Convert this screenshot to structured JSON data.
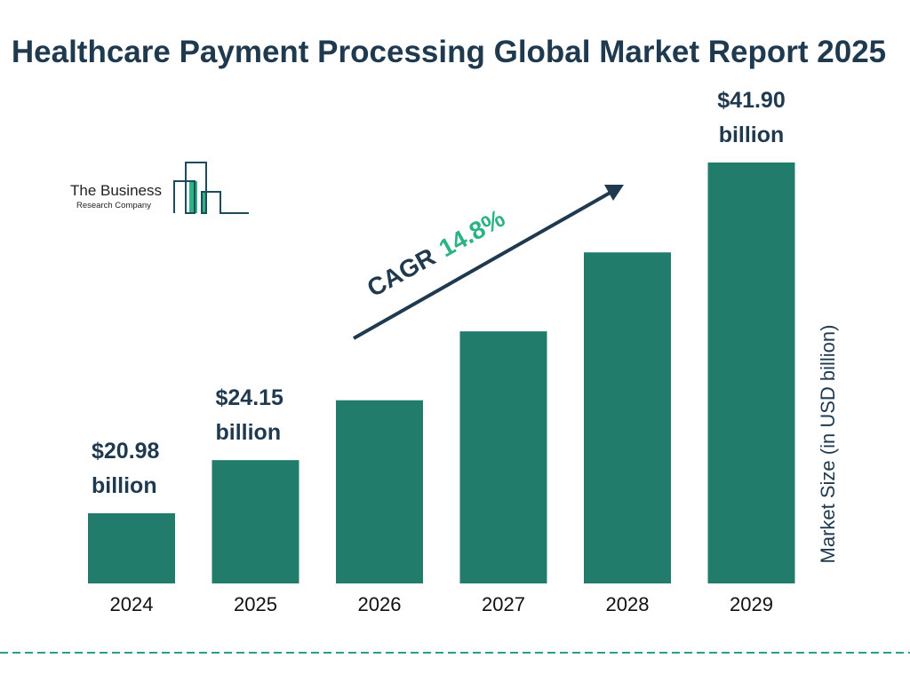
{
  "chart_data": {
    "type": "bar",
    "title": "Healthcare Payment Processing Global Market Report 2025",
    "ylabel": "Market Size (in USD billion)",
    "xlabel": "",
    "categories": [
      "2024",
      "2025",
      "2026",
      "2027",
      "2028",
      "2029"
    ],
    "values": [
      20.98,
      24.15,
      27.72,
      31.83,
      36.54,
      41.9
    ],
    "data_labels": [
      {
        "index": 0,
        "line1": "$20.98",
        "line2": "billion"
      },
      {
        "index": 1,
        "line1": "$24.15",
        "line2": "billion"
      },
      {
        "index": 5,
        "line1": "$41.90",
        "line2": "billion"
      }
    ],
    "annotation": {
      "prefix": "CAGR",
      "value": "14.8%"
    },
    "grid": false,
    "colors": {
      "bar": "#217c6c",
      "title": "#1f3a4f",
      "cagr": "#2bb383",
      "dash": "#2a9d8f"
    }
  },
  "logo": {
    "line1": "The Business",
    "line2": "Research Company"
  }
}
